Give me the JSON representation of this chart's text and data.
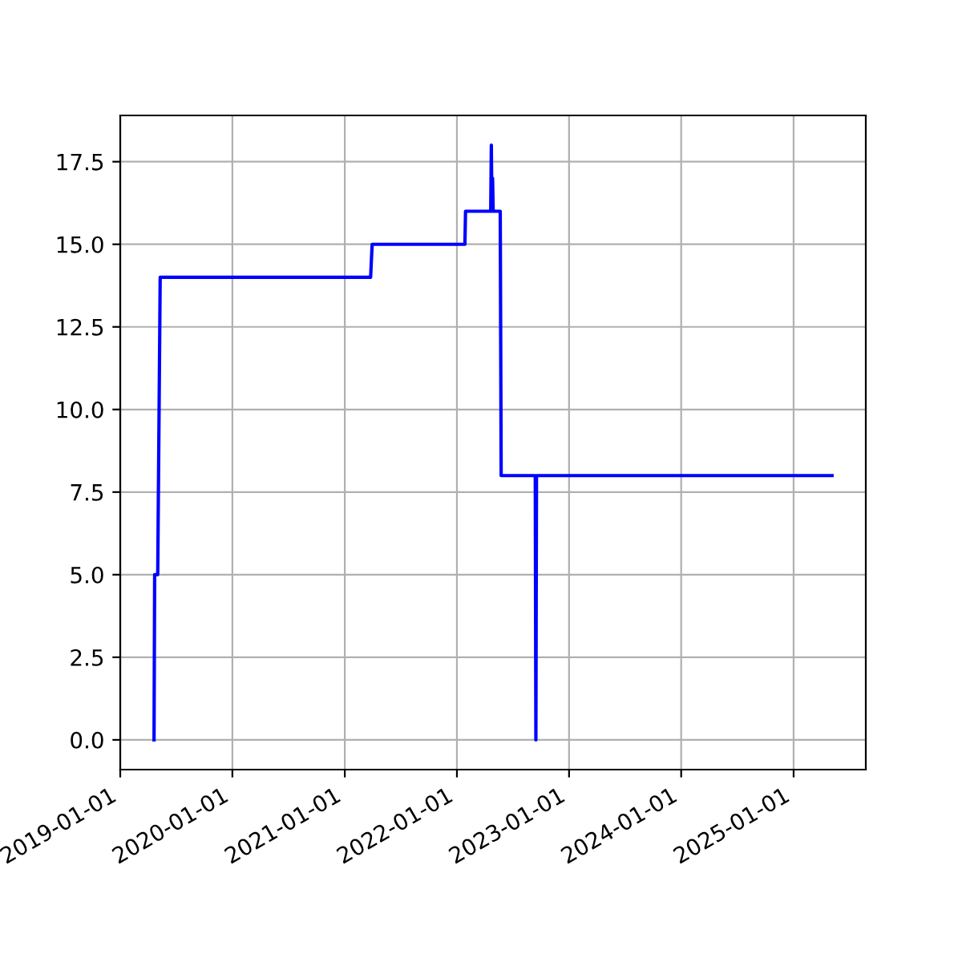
{
  "chart_data": {
    "type": "line",
    "x": [
      "2019-04-21",
      "2019-04-23",
      "2019-05-03",
      "2019-05-11",
      "2021-03-26",
      "2021-03-31",
      "2022-01-27",
      "2022-01-29",
      "2022-04-21",
      "2022-04-23",
      "2022-04-25",
      "2022-04-27",
      "2022-04-29",
      "2022-05-22",
      "2022-05-25",
      "2022-09-13",
      "2022-09-15",
      "2022-09-17",
      "2025-05-06"
    ],
    "series": [
      {
        "color": "#0000ff",
        "values": [
          0,
          5,
          5,
          14,
          14,
          15,
          15,
          16,
          16,
          18,
          16,
          17,
          16,
          16,
          8,
          8,
          0,
          8,
          8
        ]
      }
    ],
    "xlim": [
      "2019-01-01",
      "2025-08-24"
    ],
    "xticks": [
      "2019-01-01",
      "2020-01-01",
      "2021-01-01",
      "2022-01-01",
      "2023-01-01",
      "2024-01-01",
      "2025-01-01"
    ],
    "ylim": [
      -0.9,
      18.9
    ],
    "yticks": [
      {
        "value": 0,
        "label": "0.0"
      },
      2.5,
      {
        "value": 5,
        "label": "5.0"
      },
      7.5,
      {
        "value": 10,
        "label": "10.0"
      },
      12.5,
      {
        "value": 15,
        "label": "15.0"
      },
      17.5
    ],
    "grid": true
  }
}
